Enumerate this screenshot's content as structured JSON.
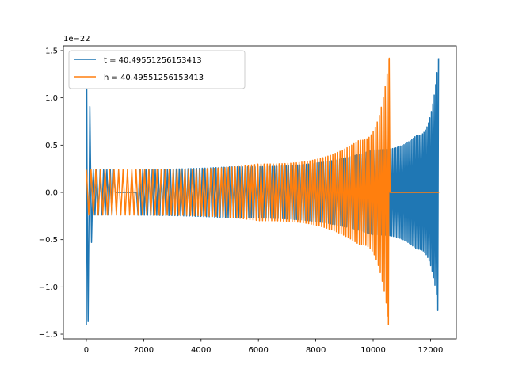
{
  "chart_data": {
    "type": "line",
    "title": "",
    "xlabel": "",
    "ylabel": "",
    "offset_text": "1e−22",
    "xlim": [
      -800,
      12900
    ],
    "ylim": [
      -1.55,
      1.55
    ],
    "y_scale_exponent": -22,
    "xticks": [
      0,
      2000,
      4000,
      6000,
      8000,
      10000,
      12000
    ],
    "xtick_labels": [
      "0",
      "2000",
      "4000",
      "6000",
      "8000",
      "10000",
      "12000"
    ],
    "yticks": [
      -1.5,
      -1.0,
      -0.5,
      0.0,
      0.5,
      1.0,
      1.5
    ],
    "ytick_labels": [
      "−1.5",
      "−1.0",
      "−0.5",
      "0.0",
      "0.5",
      "1.0",
      "1.5"
    ],
    "grid": false,
    "legend_position": "top-left",
    "series": [
      {
        "name": "t = 40.49551256153413",
        "color": "#1f77b4",
        "description_points": [
          {
            "x": 0,
            "y_max": 1.1,
            "y_min": -1.4
          },
          {
            "x": 200,
            "y_max": 0.24,
            "y_min": -0.24
          },
          {
            "x": 5000,
            "y_max": 0.27,
            "y_min": -0.27
          },
          {
            "x": 10000,
            "y_max": 0.45,
            "y_min": -0.45
          },
          {
            "x": 11500,
            "y_max": 0.6,
            "y_min": -0.6
          },
          {
            "x": 12280,
            "y_max": 1.42,
            "y_min": -1.25
          }
        ],
        "zero_interval": [
          1000,
          1800
        ]
      },
      {
        "name": "h = 40.49551256153413",
        "color": "#ff7f0e",
        "description_points": [
          {
            "x": 0,
            "y_max": 0.24,
            "y_min": -0.24
          },
          {
            "x": 2000,
            "y_max": 0.24,
            "y_min": -0.24
          },
          {
            "x": 6000,
            "y_max": 0.3,
            "y_min": -0.3
          },
          {
            "x": 9500,
            "y_max": 0.55,
            "y_min": -0.55
          },
          {
            "x": 10560,
            "y_max": 1.42,
            "y_min": -1.4
          }
        ],
        "zero_interval": [
          10580,
          12300
        ]
      }
    ]
  }
}
